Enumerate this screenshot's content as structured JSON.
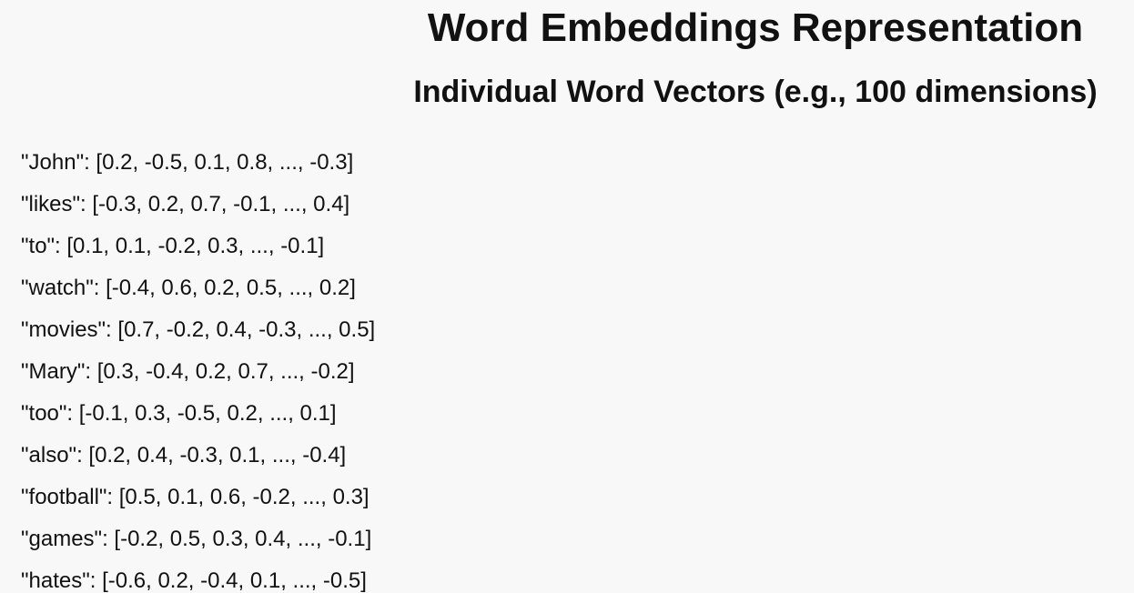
{
  "header": {
    "title": "Word Embeddings Representation",
    "subtitle": "Individual Word Vectors (e.g., 100 dimensions)"
  },
  "vectors": [
    "\"John\": [0.2, -0.5, 0.1, 0.8, ..., -0.3]",
    "\"likes\": [-0.3, 0.2, 0.7, -0.1, ..., 0.4]",
    "\"to\": [0.1, 0.1, -0.2, 0.3, ..., -0.1]",
    "\"watch\": [-0.4, 0.6, 0.2, 0.5, ..., 0.2]",
    "\"movies\": [0.7, -0.2, 0.4, -0.3, ..., 0.5]",
    "\"Mary\": [0.3, -0.4, 0.2, 0.7, ..., -0.2]",
    "\"too\": [-0.1, 0.3, -0.5, 0.2, ..., 0.1]",
    "\"also\": [0.2, 0.4, -0.3, 0.1, ..., -0.4]",
    "\"football\": [0.5, 0.1, 0.6, -0.2, ..., 0.3]",
    "\"games\": [-0.2, 0.5, 0.3, 0.4, ..., -0.1]",
    "\"hates\": [-0.6, 0.2, -0.4, 0.1, ..., -0.5]"
  ]
}
